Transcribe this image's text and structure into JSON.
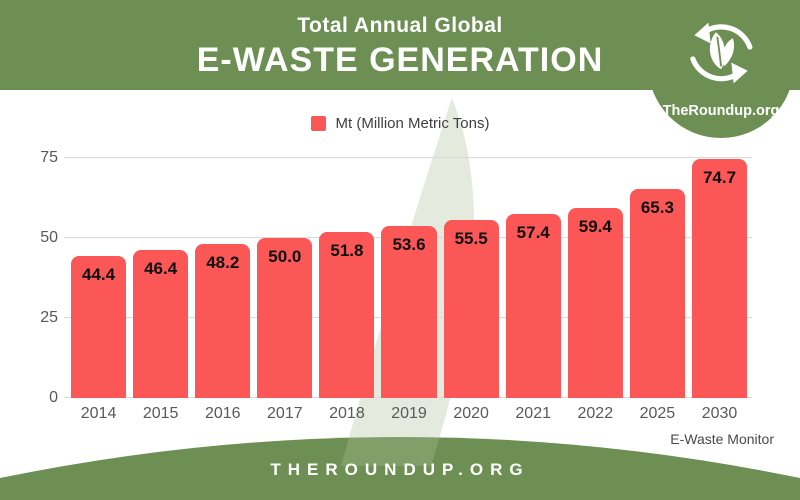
{
  "header": {
    "subtitle": "Total Annual Global",
    "title": "E-WASTE GENERATION"
  },
  "logo": {
    "text": "TheRoundup.org",
    "icon": "recycle-leaves-icon"
  },
  "legend": {
    "items": [
      {
        "label": "Mt (Million Metric Tons)",
        "color": "#fb5757"
      }
    ]
  },
  "chart_data": {
    "type": "bar",
    "title": "Total Annual Global E-Waste Generation",
    "categories": [
      "2014",
      "2015",
      "2016",
      "2017",
      "2018",
      "2019",
      "2020",
      "2021",
      "2022",
      "2025",
      "2030"
    ],
    "values": [
      44.4,
      46.4,
      48.2,
      50.0,
      51.8,
      53.6,
      55.5,
      57.4,
      59.4,
      65.3,
      74.7
    ],
    "series_name": "Mt (Million Metric Tons)",
    "xlabel": "",
    "ylabel": "",
    "ylim": [
      0,
      75
    ],
    "yticks": [
      0,
      25,
      50,
      75
    ],
    "grid": true,
    "legend_position": "top",
    "bar_color": "#fb5757",
    "value_labels_shown": true,
    "value_label_decimals": 1
  },
  "source_note": "E-Waste Monitor",
  "footer": {
    "site": "THEROUNDUP.ORG"
  },
  "colors": {
    "brand_green": "#6d8f53",
    "bar_red": "#fb5757",
    "gridline": "#d9d9d9",
    "axis_text": "#595959",
    "value_label": "#101010",
    "watermark": "#aebf9a"
  }
}
